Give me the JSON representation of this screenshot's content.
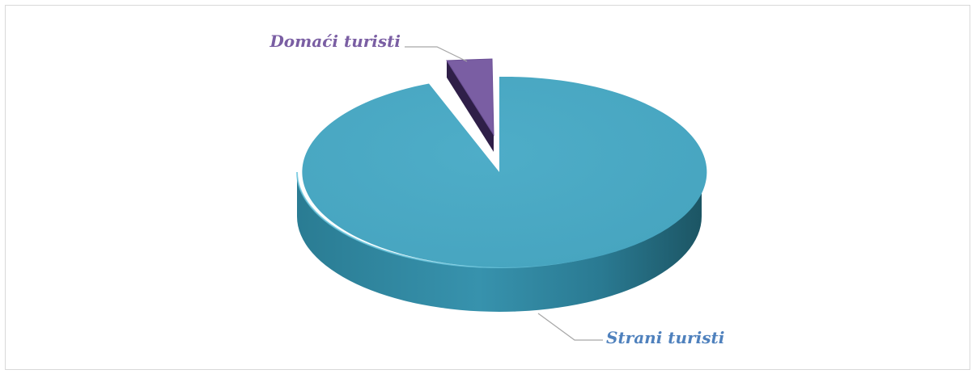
{
  "chart_data": {
    "type": "pie",
    "categories": [
      "Strani turisti",
      "Domaći turisti"
    ],
    "values": [
      96,
      4
    ],
    "colors": [
      "#4aa9c4",
      "#7a5ea3"
    ],
    "legend": "none",
    "exploded": "Domaći turisti"
  }
}
